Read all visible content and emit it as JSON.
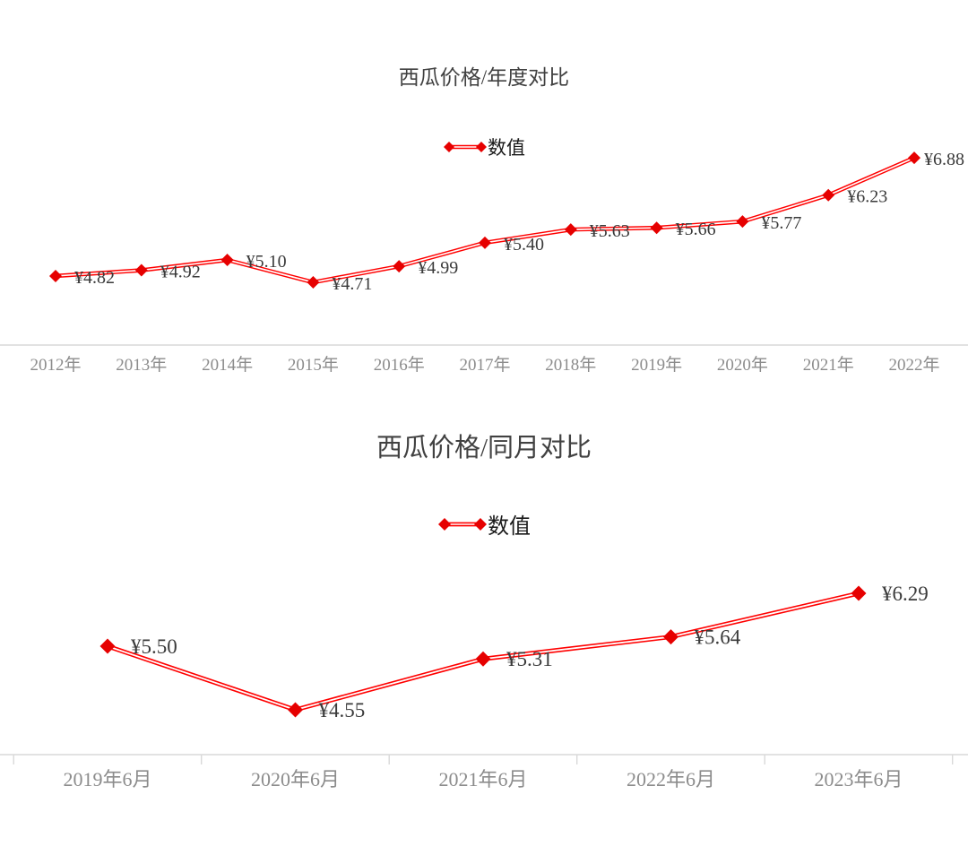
{
  "chart_data": [
    {
      "type": "line",
      "title": "西瓜价格/年度对比",
      "legend": "数值",
      "legend_position": "top-center",
      "series_name": "数值",
      "categories": [
        "2012年",
        "2013年",
        "2014年",
        "2015年",
        "2016年",
        "2017年",
        "2018年",
        "2019年",
        "2020年",
        "2021年",
        "2022年"
      ],
      "values": [
        4.82,
        4.92,
        5.1,
        4.71,
        4.99,
        5.4,
        5.63,
        5.66,
        5.77,
        6.23,
        6.88
      ],
      "data_labels": [
        "¥4.82",
        "¥4.92",
        "¥5.10",
        "¥4.71",
        "¥4.99",
        "¥5.40",
        "¥5.63",
        "¥5.66",
        "¥5.77",
        "¥6.23",
        "¥6.88"
      ],
      "ylim": [
        4.4,
        7.1
      ],
      "grid": false,
      "marker": "diamond",
      "line_color": "#ff0000",
      "marker_color": "#e60000",
      "data_label_color": "#3a3a3a",
      "axis_line_color": "#d9d9d9",
      "tick_label_color": "#8c8c8c"
    },
    {
      "type": "line",
      "title": "西瓜价格/同月对比",
      "legend": "数值",
      "legend_position": "top-center",
      "series_name": "数值",
      "categories": [
        "2019年6月",
        "2020年6月",
        "2021年6月",
        "2022年6月",
        "2023年6月"
      ],
      "values": [
        5.5,
        4.55,
        5.31,
        5.64,
        6.29
      ],
      "data_labels": [
        "¥5.50",
        "¥4.55",
        "¥5.31",
        "¥5.64",
        "¥6.29"
      ],
      "ylim": [
        4.2,
        6.9
      ],
      "grid": false,
      "marker": "diamond",
      "line_color": "#ff0000",
      "marker_color": "#e60000",
      "data_label_color": "#3a3a3a",
      "axis_line_color": "#d9d9d9",
      "tick_label_color": "#8c8c8c"
    }
  ]
}
